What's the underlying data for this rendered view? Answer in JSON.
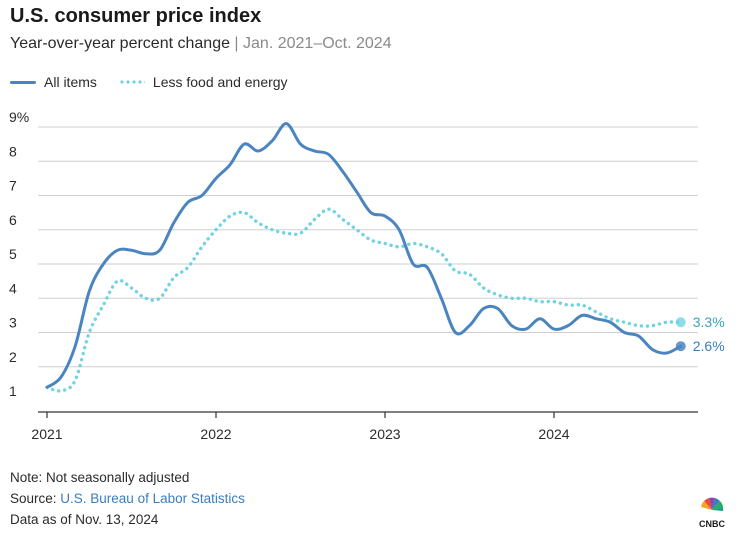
{
  "header": {
    "title": "U.S. consumer price index",
    "subtitle_main": "Year-over-year percent change",
    "subtitle_sep": " | ",
    "subtitle_range": "Jan. 2021–Oct. 2024"
  },
  "legend": {
    "all_items": "All items",
    "core": "Less food and energy"
  },
  "colors": {
    "all_items": "#4a85c0",
    "core": "#6fd3e3",
    "grid": "#cfcfcf",
    "axis": "#333333"
  },
  "chart_data": {
    "type": "line",
    "x_labels": [
      "2021",
      "2022",
      "2023",
      "2024"
    ],
    "y_ticks": [
      "1",
      "2",
      "3",
      "4",
      "5",
      "6",
      "7",
      "8",
      "9%"
    ],
    "ylim": [
      1,
      9
    ],
    "x": [
      "Jan 2021",
      "Feb 2021",
      "Mar 2021",
      "Apr 2021",
      "May 2021",
      "Jun 2021",
      "Jul 2021",
      "Aug 2021",
      "Sep 2021",
      "Oct 2021",
      "Nov 2021",
      "Dec 2021",
      "Jan 2022",
      "Feb 2022",
      "Mar 2022",
      "Apr 2022",
      "May 2022",
      "Jun 2022",
      "Jul 2022",
      "Aug 2022",
      "Sep 2022",
      "Oct 2022",
      "Nov 2022",
      "Dec 2022",
      "Jan 2023",
      "Feb 2023",
      "Mar 2023",
      "Apr 2023",
      "May 2023",
      "Jun 2023",
      "Jul 2023",
      "Aug 2023",
      "Sep 2023",
      "Oct 2023",
      "Nov 2023",
      "Dec 2023",
      "Jan 2024",
      "Feb 2024",
      "Mar 2024",
      "Apr 2024",
      "May 2024",
      "Jun 2024",
      "Jul 2024",
      "Aug 2024",
      "Sep 2024",
      "Oct 2024"
    ],
    "series": [
      {
        "name": "All items",
        "values": [
          1.4,
          1.7,
          2.6,
          4.2,
          5.0,
          5.4,
          5.4,
          5.3,
          5.4,
          6.2,
          6.8,
          7.0,
          7.5,
          7.9,
          8.5,
          8.3,
          8.6,
          9.1,
          8.5,
          8.3,
          8.2,
          7.7,
          7.1,
          6.5,
          6.4,
          6.0,
          5.0,
          4.9,
          4.0,
          3.0,
          3.2,
          3.7,
          3.7,
          3.2,
          3.1,
          3.4,
          3.1,
          3.2,
          3.5,
          3.4,
          3.3,
          3.0,
          2.9,
          2.5,
          2.4,
          2.6
        ],
        "end_label": "2.6%"
      },
      {
        "name": "Less food and energy",
        "values": [
          1.4,
          1.3,
          1.6,
          3.0,
          3.8,
          4.5,
          4.3,
          4.0,
          4.0,
          4.6,
          4.9,
          5.5,
          6.0,
          6.4,
          6.5,
          6.2,
          6.0,
          5.9,
          5.9,
          6.3,
          6.6,
          6.3,
          6.0,
          5.7,
          5.6,
          5.5,
          5.6,
          5.5,
          5.3,
          4.8,
          4.7,
          4.3,
          4.1,
          4.0,
          4.0,
          3.9,
          3.9,
          3.8,
          3.8,
          3.6,
          3.4,
          3.3,
          3.2,
          3.2,
          3.3,
          3.3
        ],
        "end_label": "3.3%"
      }
    ]
  },
  "footer": {
    "note": "Note: Not seasonally adjusted",
    "source_prefix": "Source: ",
    "source_link": "U.S. Bureau of Labor Statistics",
    "data_as_of": "Data as of Nov. 13, 2024"
  },
  "logo": {
    "text": "CNBC"
  }
}
